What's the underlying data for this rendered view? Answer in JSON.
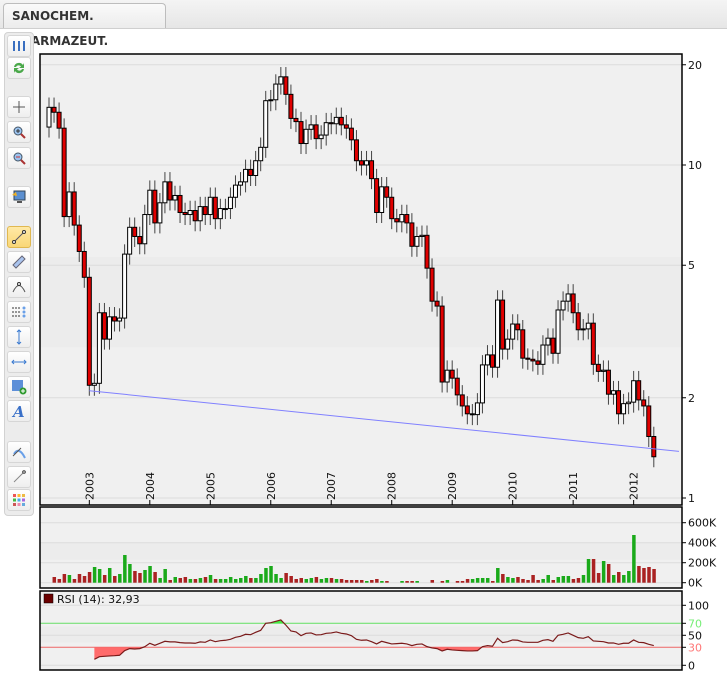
{
  "tab": {
    "title": "SANOCHEM. PHARMAZEUT."
  },
  "toolbar": {
    "items": [
      {
        "name": "columns-icon",
        "active": false
      },
      {
        "name": "refresh-icon",
        "active": false
      },
      {
        "name": "crosshair-icon",
        "active": false
      },
      {
        "name": "zoom-in-icon",
        "active": false
      },
      {
        "name": "zoom-out-icon",
        "active": false
      },
      {
        "name": "monitor-icon",
        "active": false
      },
      {
        "name": "trendline-icon",
        "active": true
      },
      {
        "name": "channel-icon",
        "active": false
      },
      {
        "name": "arc-icon",
        "active": false
      },
      {
        "name": "fibonacci-icon",
        "active": false
      },
      {
        "name": "vertical-line-icon",
        "active": false
      },
      {
        "name": "horizontal-line-icon",
        "active": false
      },
      {
        "name": "rectangle-add-icon",
        "active": false
      },
      {
        "name": "text-icon",
        "active": false
      },
      {
        "name": "curve-icon",
        "active": false
      },
      {
        "name": "line-icon",
        "active": false
      },
      {
        "name": "palette-icon",
        "active": false
      }
    ]
  },
  "chart_data": [
    {
      "type": "candlestick",
      "scale": "log",
      "y_ticks": [
        20,
        10,
        5,
        2,
        1
      ],
      "x_ticks": [
        "2003",
        "2004",
        "2005",
        "2006",
        "2007",
        "2008",
        "2009",
        "2010",
        "2011",
        "2012"
      ],
      "grid": true,
      "up_color": "#ffffff",
      "down_color": "#e00000",
      "dates": [
        "2002-05",
        "2002-06",
        "2002-07",
        "2002-08",
        "2002-09",
        "2002-10",
        "2002-11",
        "2002-12",
        "2003-01",
        "2003-02",
        "2003-03",
        "2003-04",
        "2003-05",
        "2003-06",
        "2003-07",
        "2003-08",
        "2003-09",
        "2003-10",
        "2003-11",
        "2003-12",
        "2004-01",
        "2004-02",
        "2004-03",
        "2004-04",
        "2004-05",
        "2004-06",
        "2004-07",
        "2004-08",
        "2004-09",
        "2004-10",
        "2004-11",
        "2004-12",
        "2005-01",
        "2005-02",
        "2005-03",
        "2005-04",
        "2005-05",
        "2005-06",
        "2005-07",
        "2005-08",
        "2005-09",
        "2005-10",
        "2005-11",
        "2005-12",
        "2006-01",
        "2006-02",
        "2006-03",
        "2006-04",
        "2006-05",
        "2006-06",
        "2006-07",
        "2006-08",
        "2006-09",
        "2006-10",
        "2006-11",
        "2006-12",
        "2007-01",
        "2007-02",
        "2007-03",
        "2007-04",
        "2007-05",
        "2007-06",
        "2007-07",
        "2007-08",
        "2007-09",
        "2007-10",
        "2007-11",
        "2007-12",
        "2008-01",
        "2008-02",
        "2008-03",
        "2008-04",
        "2008-05",
        "2008-06",
        "2008-07",
        "2008-08",
        "2008-09",
        "2008-10",
        "2008-11",
        "2008-12",
        "2009-01",
        "2009-02",
        "2009-03",
        "2009-04",
        "2009-05",
        "2009-06",
        "2009-07",
        "2009-08",
        "2009-09",
        "2009-10",
        "2009-11",
        "2009-12",
        "2010-01",
        "2010-02",
        "2010-03",
        "2010-04",
        "2010-05",
        "2010-06",
        "2010-07",
        "2010-08",
        "2010-09",
        "2010-10",
        "2010-11",
        "2010-12",
        "2011-01",
        "2011-02",
        "2011-03",
        "2011-04",
        "2011-05",
        "2011-06",
        "2011-07",
        "2011-08",
        "2011-09",
        "2011-10",
        "2011-11",
        "2011-12",
        "2012-01",
        "2012-02",
        "2012-03",
        "2012-04",
        "2012-05"
      ],
      "open_first": 13.0,
      "close": [
        14.9,
        14.4,
        12.9,
        7.0,
        8.3,
        6.6,
        5.5,
        4.6,
        2.18,
        2.21,
        3.6,
        3.0,
        3.5,
        3.4,
        3.47,
        5.4,
        6.5,
        6.1,
        5.8,
        7.1,
        8.4,
        6.7,
        7.7,
        8.9,
        7.85,
        8.1,
        7.2,
        7.1,
        7.3,
        6.8,
        7.5,
        7.1,
        8.0,
        6.9,
        7.4,
        7.4,
        8.0,
        8.7,
        8.9,
        9.7,
        9.3,
        10.3,
        11.3,
        15.6,
        15.7,
        17.5,
        18.4,
        16.3,
        13.8,
        13.5,
        11.6,
        12.8,
        13.2,
        12.0,
        12.3,
        13.4,
        13.3,
        13.9,
        13.2,
        12.9,
        11.9,
        10.3,
        10.0,
        10.3,
        9.1,
        7.2,
        8.6,
        8.0,
        6.9,
        6.75,
        7.1,
        6.7,
        5.7,
        6.1,
        6.15,
        4.9,
        3.9,
        3.77,
        2.23,
        2.42,
        2.29,
        2.04,
        1.89,
        1.79,
        1.78,
        1.93,
        2.51,
        2.69,
        2.47,
        3.93,
        2.8,
        3.0,
        3.33,
        3.2,
        2.63,
        2.61,
        2.58,
        2.52,
        2.88,
        3.02,
        2.72,
        3.67,
        3.9,
        4.1,
        3.6,
        3.2,
        3.22,
        3.35,
        2.52,
        2.4,
        2.42,
        2.05,
        2.1,
        1.79,
        1.92,
        1.94,
        2.25,
        1.97,
        1.89,
        1.53,
        1.33
      ],
      "trendline": {
        "color": "#8080ff",
        "points": [
          [
            "2003-01",
            2.1
          ],
          [
            "2012-10",
            1.38
          ]
        ]
      }
    },
    {
      "type": "bar",
      "unit": "K",
      "y_ticks": [
        "600K",
        "400K",
        "200K",
        "0K"
      ],
      "y_tick_values": [
        600,
        400,
        200,
        0
      ],
      "colors": {
        "up": "#1aaa1a",
        "down": "#aa2222"
      },
      "volume_k": [
        null,
        57,
        37,
        87,
        77,
        37,
        87,
        67,
        107,
        157,
        137,
        77,
        147,
        67,
        87,
        277,
        187,
        117,
        97,
        127,
        167,
        107,
        47,
        137,
        27,
        57,
        47,
        57,
        37,
        37,
        47,
        57,
        77,
        37,
        37,
        37,
        57,
        37,
        47,
        67,
        47,
        47,
        87,
        147,
        167,
        87,
        47,
        97,
        67,
        37,
        47,
        37,
        47,
        57,
        37,
        47,
        47,
        37,
        37,
        27,
        27,
        27,
        27,
        17,
        27,
        37,
        17,
        17,
        0,
        0,
        17,
        17,
        17,
        17,
        0,
        0,
        27,
        0,
        17,
        27,
        0,
        17,
        17,
        37,
        37,
        47,
        47,
        47,
        17,
        147,
        87,
        57,
        47,
        57,
        37,
        27,
        77,
        27,
        37,
        77,
        27,
        57,
        67,
        67,
        37,
        47,
        77,
        237,
        237,
        97,
        217,
        187,
        77,
        107,
        77,
        117,
        477,
        167,
        147,
        157,
        137
      ],
      "volume_dir": [
        null,
        "d",
        "d",
        "d",
        "u",
        "d",
        "d",
        "d",
        "d",
        "u",
        "u",
        "d",
        "u",
        "d",
        "u",
        "u",
        "u",
        "d",
        "d",
        "u",
        "u",
        "d",
        "u",
        "u",
        "d",
        "u",
        "d",
        "d",
        "u",
        "d",
        "u",
        "d",
        "u",
        "d",
        "u",
        "u",
        "u",
        "u",
        "u",
        "u",
        "d",
        "u",
        "u",
        "u",
        "u",
        "u",
        "u",
        "d",
        "d",
        "d",
        "d",
        "u",
        "u",
        "d",
        "u",
        "u",
        "d",
        "u",
        "d",
        "d",
        "d",
        "d",
        "d",
        "u",
        "d",
        "d",
        "u",
        "d",
        "u",
        "u",
        "u",
        "d",
        "d",
        "u",
        "u",
        "u",
        "d",
        "u",
        "d",
        "u",
        "u",
        "d",
        "d",
        "d",
        "u",
        "u",
        "u",
        "u",
        "d",
        "u",
        "d",
        "u",
        "u",
        "d",
        "d",
        "d",
        "d",
        "d",
        "u",
        "u",
        "d",
        "u",
        "u",
        "u",
        "d",
        "d",
        "u",
        "u",
        "d",
        "d",
        "u",
        "d",
        "u",
        "d",
        "u",
        "u",
        "u",
        "d",
        "d",
        "d",
        "d"
      ]
    },
    {
      "type": "line",
      "legend": "RSI (14): 32,93",
      "legend_color": "#6b0000",
      "line_color": "#7a1a1a",
      "y_ticks": [
        100,
        70,
        50,
        30,
        0
      ],
      "upper_level": {
        "value": 70,
        "color": "#66dd66"
      },
      "lower_level": {
        "value": 30,
        "color": "#ee6666"
      },
      "rsi": [
        null,
        null,
        null,
        null,
        null,
        null,
        null,
        null,
        null,
        10,
        14.4,
        15,
        15.6,
        16,
        16.7,
        24.4,
        27.8,
        27.2,
        27.8,
        31,
        36.7,
        33.3,
        36.7,
        40,
        39,
        39,
        37.8,
        37.2,
        37.2,
        36.7,
        39,
        38.3,
        42.2,
        39.4,
        41,
        41.7,
        43.3,
        46.7,
        48.3,
        51.7,
        51,
        55,
        58.3,
        70,
        71,
        73.3,
        75.6,
        67,
        57.2,
        55.6,
        49.4,
        53.3,
        53.9,
        50.6,
        51,
        53.3,
        53.9,
        55.6,
        53.3,
        52.2,
        49.4,
        43.3,
        41.7,
        42.2,
        39.4,
        35.6,
        40,
        37.8,
        35.6,
        36.1,
        36.7,
        35.6,
        32.8,
        35,
        35.6,
        31.1,
        28.9,
        27.8,
        23.9,
        26.7,
        25.6,
        25,
        24.4,
        23.9,
        23.9,
        24.4,
        31.1,
        32.8,
        31.7,
        45,
        37.8,
        39.4,
        42.2,
        41.7,
        38.9,
        38.3,
        38.3,
        38.3,
        41.7,
        42.8,
        40,
        50,
        51.7,
        53.9,
        50,
        46.1,
        45,
        47.8,
        40.6,
        40,
        39.4,
        37.2,
        37.2,
        35,
        36.7,
        36.7,
        42.2,
        38.3,
        37.8,
        35,
        32.93
      ]
    }
  ]
}
